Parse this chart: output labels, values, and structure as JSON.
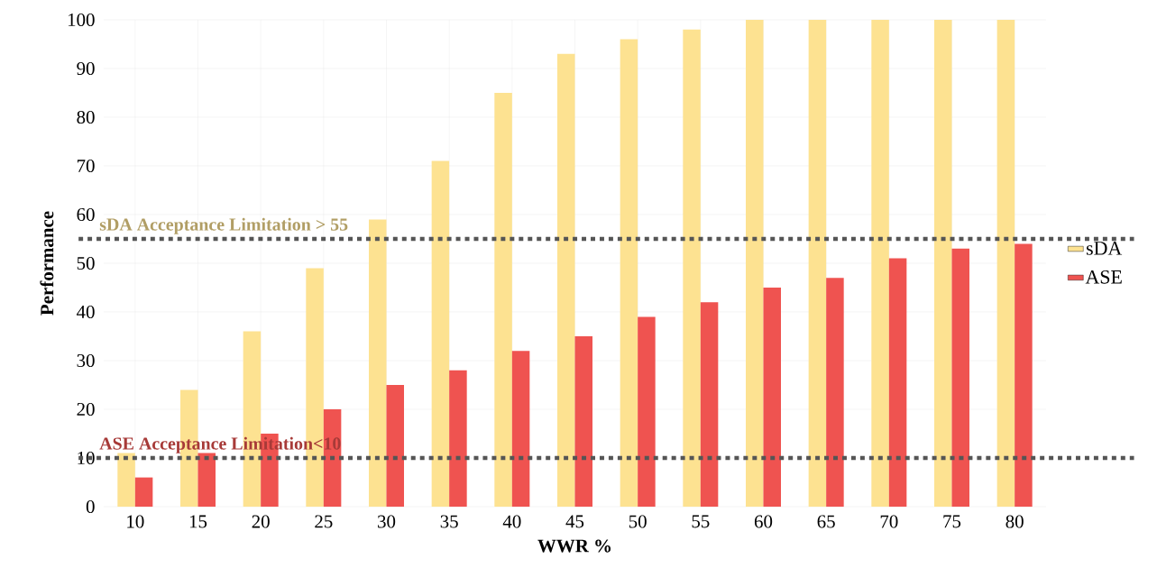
{
  "chart_data": {
    "type": "bar",
    "xlabel": "WWR %",
    "ylabel": "Performance",
    "categories": [
      "10",
      "15",
      "20",
      "25",
      "30",
      "35",
      "40",
      "45",
      "50",
      "55",
      "60",
      "65",
      "70",
      "75",
      "80"
    ],
    "series": [
      {
        "name": "sDA",
        "color": "#fde291",
        "values": [
          11,
          24,
          36,
          49,
          59,
          71,
          85,
          93,
          96,
          98,
          100,
          100,
          100,
          100,
          100
        ]
      },
      {
        "name": "ASE",
        "color": "#ef5350",
        "values": [
          6,
          11,
          15,
          20,
          25,
          28,
          32,
          35,
          39,
          42,
          45,
          47,
          51,
          53,
          54
        ]
      }
    ],
    "ylim": [
      0,
      100
    ],
    "yticks": [
      0,
      10,
      20,
      30,
      40,
      50,
      60,
      70,
      80,
      90,
      100
    ],
    "ref_lines": [
      {
        "axis": "y",
        "value": 55,
        "label": "sDA Acceptance Limitation  >  55",
        "color": "#555555",
        "line_style": "dotted"
      },
      {
        "axis": "y",
        "value": 10,
        "label": "ASE Acceptance Limitation<10",
        "color": "#555555",
        "line_style": "dotted"
      }
    ],
    "grid": true,
    "legend": "right"
  }
}
